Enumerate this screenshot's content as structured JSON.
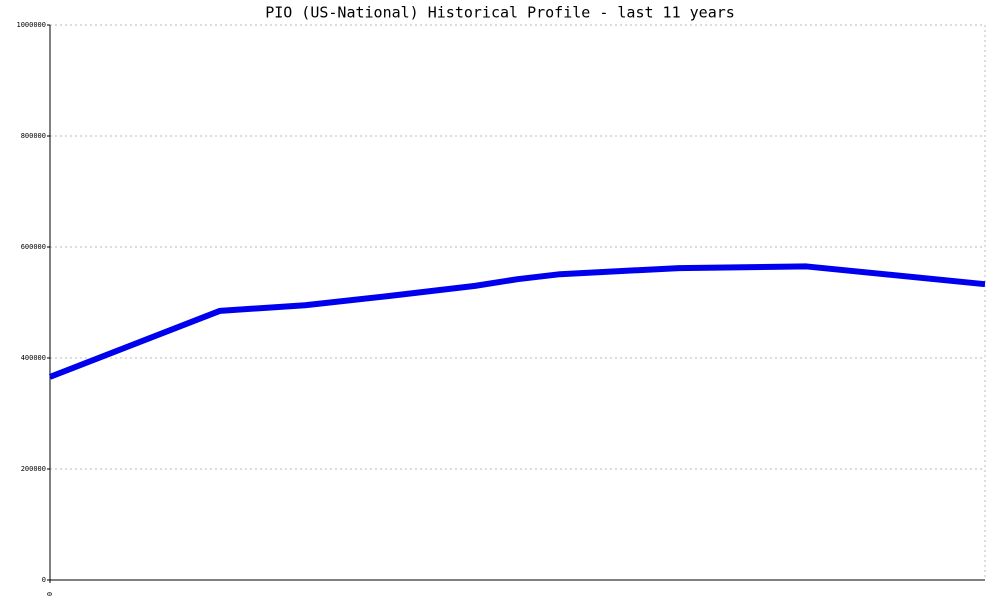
{
  "chart_data": {
    "type": "line",
    "title": "PIO (US-National) Historical Profile - last 11 years",
    "x": [
      0,
      2,
      3,
      4,
      5,
      5.5,
      6,
      7.4,
      8.9,
      11
    ],
    "series": [
      {
        "name": "PIO",
        "color": "#0000ee",
        "values": [
          366000,
          485000,
          495000,
          512000,
          530000,
          542000,
          551000,
          562000,
          565000,
          533000
        ]
      }
    ],
    "xlim": [
      0,
      11
    ],
    "xticks": [
      0
    ],
    "ylim": [
      0,
      1000000
    ],
    "yticks": [
      0,
      200000,
      400000,
      600000,
      800000,
      1000000
    ],
    "grid": true
  }
}
